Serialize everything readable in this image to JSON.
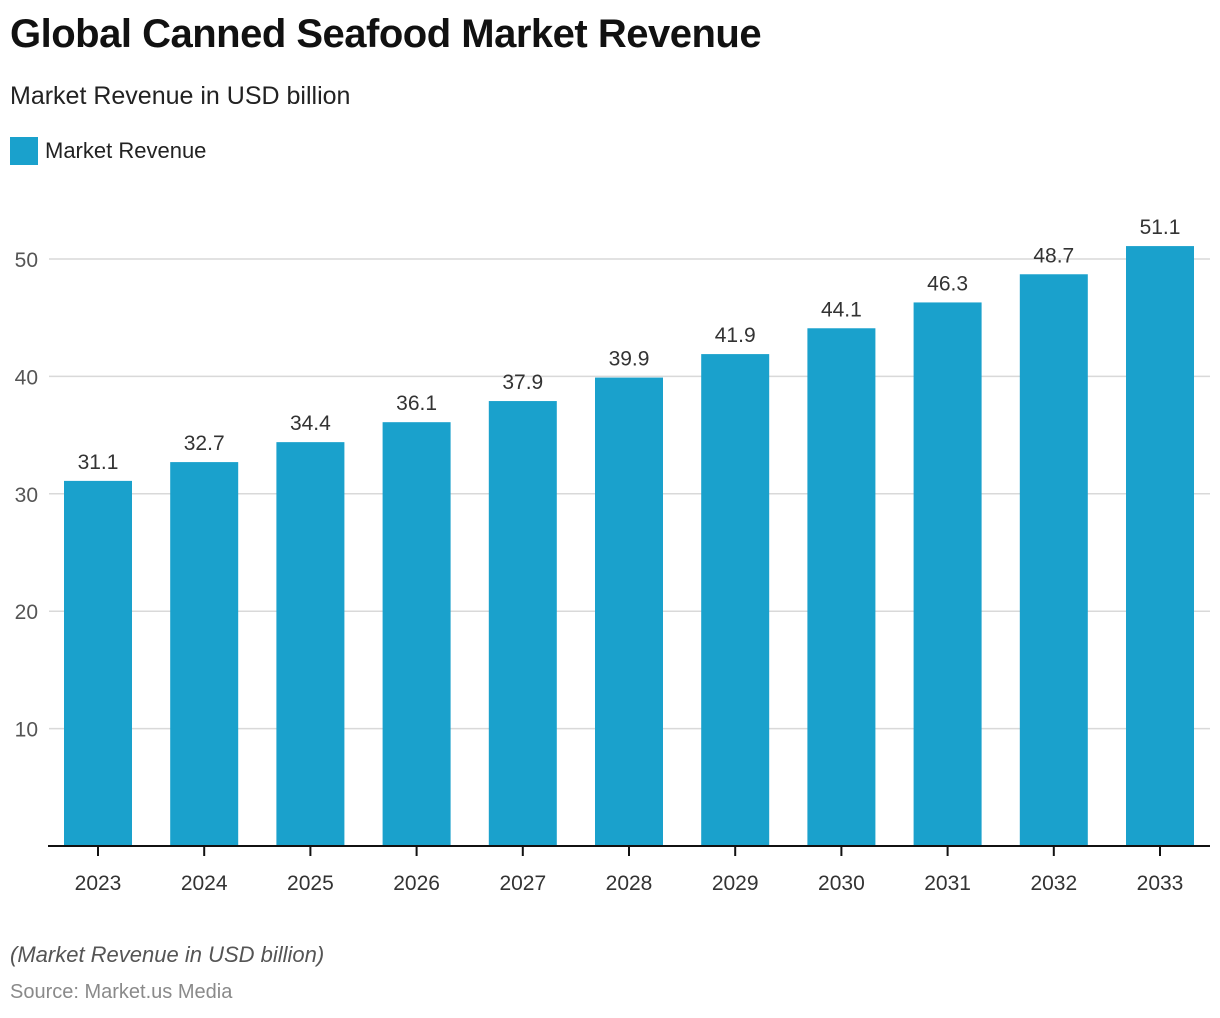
{
  "header": {
    "title": "Global Canned Seafood Market Revenue",
    "subtitle": "Market Revenue in USD billion"
  },
  "legend": {
    "label": "Market Revenue",
    "color": "#1aa1cc"
  },
  "footer": {
    "note": "(Market Revenue in USD billion)",
    "source": "Source: Market.us Media"
  },
  "colors": {
    "bar": "#1aa1cc",
    "grid": "#d9d9d9",
    "axis": "#111111",
    "tick_label": "#555555",
    "data_label": "#333333"
  },
  "chart_data": {
    "type": "bar",
    "title": "Global Canned Seafood Market Revenue",
    "subtitle": "Market Revenue in USD billion",
    "xlabel": "",
    "ylabel": "",
    "categories": [
      "2023",
      "2024",
      "2025",
      "2026",
      "2027",
      "2028",
      "2029",
      "2030",
      "2031",
      "2032",
      "2033"
    ],
    "series": [
      {
        "name": "Market Revenue",
        "values": [
          31.1,
          32.7,
          34.4,
          36.1,
          37.9,
          39.9,
          41.9,
          44.1,
          46.3,
          48.7,
          51.1
        ]
      }
    ],
    "data_labels": [
      "31.1",
      "32.7",
      "34.4",
      "36.1",
      "37.9",
      "39.9",
      "41.9",
      "44.1",
      "46.3",
      "48.7",
      "51.1"
    ],
    "yticks": [
      10,
      20,
      30,
      40,
      50
    ],
    "ytick_labels": [
      "10",
      "20",
      "30",
      "40",
      "50"
    ],
    "ylim": [
      0,
      50
    ],
    "grid": true,
    "legend_position": "top-left"
  }
}
